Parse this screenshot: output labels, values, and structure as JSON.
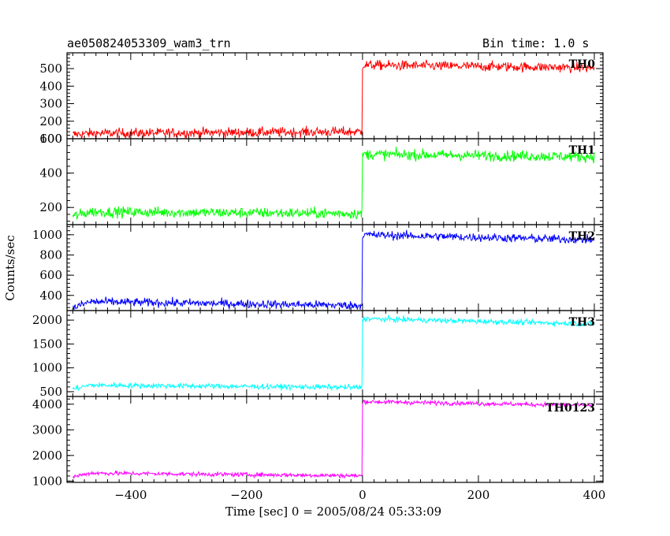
{
  "header": {
    "title": "ae050824053309_wam3_trn",
    "bin_time": "Bin time: 1.0 s"
  },
  "chart_data": {
    "type": "line",
    "title": "ae050824053309_wam3_trn",
    "subtitle": "Bin time: 1.0 s",
    "xlabel": "Time [sec] 0 = 2005/08/24 05:33:09",
    "ylabel": "Counts/sec",
    "xlim": [
      -510,
      415
    ],
    "x_ticks": [
      -400,
      -200,
      0,
      200,
      400
    ],
    "x_tick_labels": [
      "−400",
      "−200",
      "0",
      "200",
      "400"
    ],
    "grid": false,
    "legend": "none",
    "x_start": -500,
    "x_end": 400,
    "panels": [
      {
        "name": "TH0",
        "color": "#ff0000",
        "ylim": [
          100,
          590
        ],
        "y_ticks": [
          100,
          200,
          300,
          400,
          500
        ],
        "y_tick_labels": [
          "100",
          "200",
          "300",
          "400",
          "500"
        ],
        "pre_level_start": 130,
        "pre_level_end": 140,
        "post_level_start": 520,
        "post_level_end": 505,
        "noise": 20
      },
      {
        "name": "TH1",
        "color": "#00ff00",
        "ylim": [
          100,
          600
        ],
        "y_ticks": [
          200,
          400,
          600
        ],
        "y_tick_labels": [
          "200",
          "400",
          "600"
        ],
        "pre_level_start": 175,
        "pre_level_end": 165,
        "post_level_start": 510,
        "post_level_end": 495,
        "noise": 22
      },
      {
        "name": "TH2",
        "color": "#0000ff",
        "ylim": [
          250,
          1100
        ],
        "y_ticks": [
          400,
          600,
          800,
          1000
        ],
        "y_tick_labels": [
          "400",
          "600",
          "800",
          "1000"
        ],
        "pre_level_start": 340,
        "pre_level_end": 300,
        "post_level_start": 1000,
        "post_level_end": 950,
        "noise": 30
      },
      {
        "name": "TH3",
        "color": "#00ffff",
        "ylim": [
          400,
          2200
        ],
        "y_ticks": [
          500,
          1000,
          1500,
          2000
        ],
        "y_tick_labels": [
          "500",
          "1000",
          "1500",
          "2000"
        ],
        "pre_level_start": 640,
        "pre_level_end": 590,
        "post_level_start": 2030,
        "post_level_end": 1920,
        "noise": 40
      },
      {
        "name": "TH0123",
        "color": "#ff00ff",
        "ylim": [
          950,
          4300
        ],
        "y_ticks": [
          1000,
          2000,
          3000,
          4000
        ],
        "y_tick_labels": [
          "1000",
          "2000",
          "3000",
          "4000"
        ],
        "pre_level_start": 1320,
        "pre_level_end": 1210,
        "post_level_start": 4100,
        "post_level_end": 3950,
        "noise": 60
      }
    ]
  }
}
